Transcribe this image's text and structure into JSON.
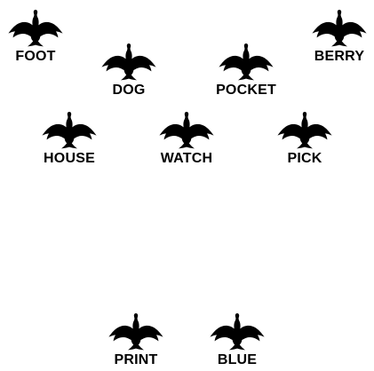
{
  "birds": [
    {
      "label": "FOOT",
      "icon": "goose-icon"
    },
    {
      "label": "DOG",
      "icon": "goose-icon"
    },
    {
      "label": "POCKET",
      "icon": "goose-icon"
    },
    {
      "label": "BERRY",
      "icon": "goose-icon"
    },
    {
      "label": "HOUSE",
      "icon": "goose-icon"
    },
    {
      "label": "WATCH",
      "icon": "goose-icon"
    },
    {
      "label": "PICK",
      "icon": "goose-icon"
    },
    {
      "label": "PRINT",
      "icon": "goose-icon"
    },
    {
      "label": "BLUE",
      "icon": "goose-icon"
    }
  ],
  "colors": {
    "background": "#ffffff",
    "ink": "#000000"
  }
}
